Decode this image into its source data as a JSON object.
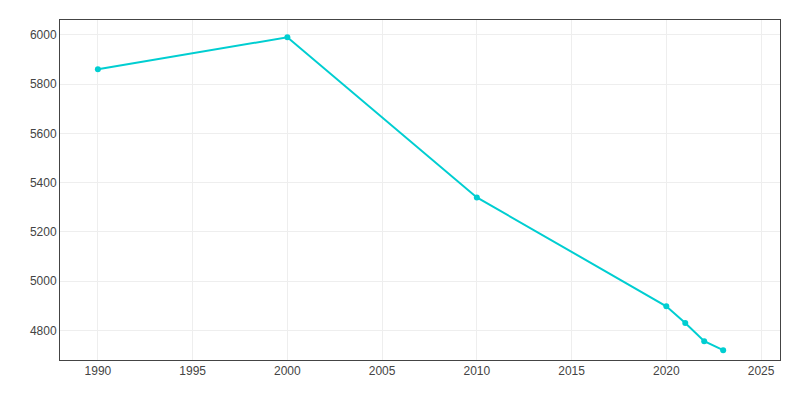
{
  "chart_data": {
    "type": "line",
    "x": [
      1990,
      2000,
      2010,
      2020,
      2021,
      2022,
      2023
    ],
    "values": [
      5860,
      5990,
      5340,
      4898,
      4830,
      4756,
      4720
    ],
    "color": "#00CED1",
    "marker": "circle",
    "xlim": [
      1988,
      2026
    ],
    "xticks": [
      1990,
      1995,
      2000,
      2005,
      2010,
      2015,
      2020,
      2025
    ],
    "ylim": [
      4680,
      6060
    ],
    "yticks": [
      4800,
      5000,
      5200,
      5400,
      5600,
      5800,
      6000
    ],
    "grid": true
  }
}
